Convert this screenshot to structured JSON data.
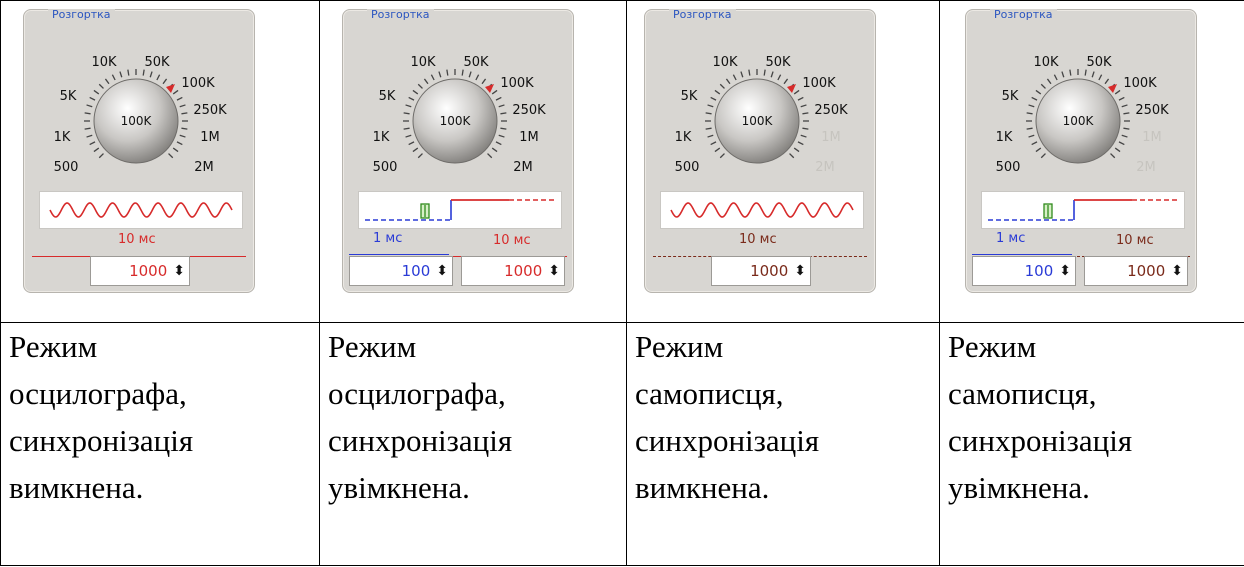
{
  "panels": [
    {
      "legend": "Розгортка",
      "dial_labels": [
        "500",
        "1K",
        "5K",
        "10K",
        "50K",
        "100K",
        "250K",
        "1M",
        "2M"
      ],
      "center_label": "100K",
      "dim_labels": [],
      "sync": false,
      "main_time": "10 мс",
      "main_value": "1000"
    },
    {
      "legend": "Розгортка",
      "dial_labels": [
        "500",
        "1K",
        "5K",
        "10K",
        "50K",
        "100K",
        "250K",
        "1M",
        "2M"
      ],
      "center_label": "100K",
      "dim_labels": [],
      "sync": true,
      "pre_time": "1 мс",
      "pre_value": "100",
      "main_time": "10 мс",
      "main_value": "1000"
    },
    {
      "legend": "Розгортка",
      "dial_labels": [
        "500",
        "1K",
        "5K",
        "10K",
        "50K",
        "100K",
        "250K",
        "1M",
        "2M"
      ],
      "center_label": "100K",
      "dim_labels": [
        "1M",
        "2M"
      ],
      "sync": false,
      "main_time": "10 мс",
      "main_value": "1000"
    },
    {
      "legend": "Розгортка",
      "dial_labels": [
        "500",
        "1K",
        "5K",
        "10K",
        "50K",
        "100K",
        "250K",
        "1M",
        "2M"
      ],
      "center_label": "100K",
      "dim_labels": [
        "1M",
        "2M"
      ],
      "sync": true,
      "pre_time": "1 мс",
      "pre_value": "100",
      "main_time": "10 мс",
      "main_value": "1000"
    }
  ],
  "captions": [
    [
      "Режим",
      "осцилографа,",
      "синхронізація",
      "вимкнена."
    ],
    [
      "Режим",
      "осцилографа,",
      "синхронізація",
      "увімкнена."
    ],
    [
      "Режим",
      "самописця,",
      "синхронізація",
      "вимкнена."
    ],
    [
      "Режим",
      "самописця,",
      "синхронізація",
      "увімкнена."
    ]
  ],
  "colors": {
    "accent_red": "#d72b2b",
    "accent_blue": "#2a3bd6",
    "legend_blue": "#2a55c0",
    "panel_bg": "#d8d6d2"
  }
}
